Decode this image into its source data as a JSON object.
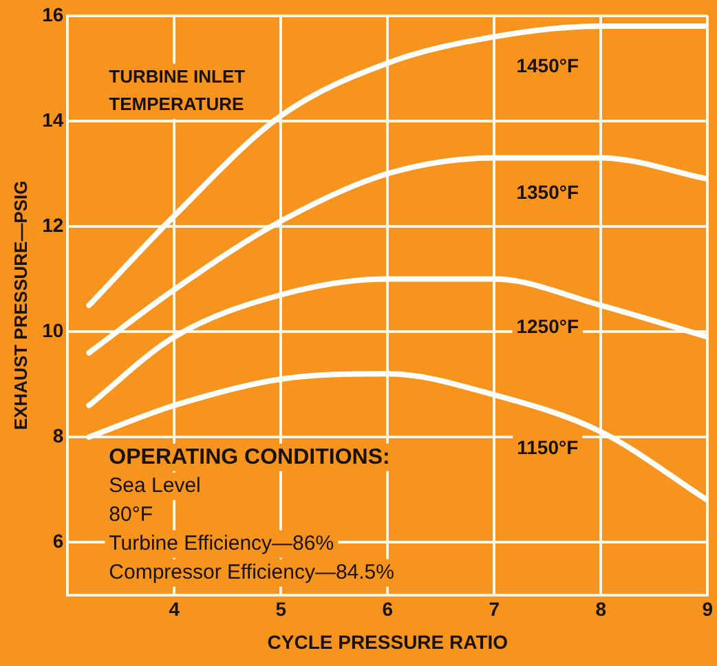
{
  "chart_data": {
    "type": "line",
    "xlabel": "CYCLE PRESSURE RATIO",
    "ylabel": "EXHAUST PRESSURE—PSIG",
    "legend_title": "TURBINE INLET TEMPERATURE",
    "x": [
      3.2,
      4,
      5,
      6,
      7,
      8,
      9
    ],
    "series": [
      {
        "name": "1450°F",
        "color": "#ffffff",
        "values": [
          10.5,
          12.2,
          14.1,
          15.1,
          15.6,
          15.8,
          15.8
        ]
      },
      {
        "name": "1350°F",
        "color": "#ffffff",
        "values": [
          9.6,
          10.8,
          12.1,
          13.0,
          13.3,
          13.3,
          12.9
        ]
      },
      {
        "name": "1250°F",
        "color": "#ffffff",
        "values": [
          8.6,
          9.9,
          10.7,
          11.0,
          11.0,
          10.5,
          9.9
        ]
      },
      {
        "name": "1150°F",
        "color": "#ffffff",
        "values": [
          8.0,
          8.6,
          9.1,
          9.2,
          8.8,
          8.1,
          6.8
        ]
      }
    ],
    "xlim": [
      3,
      9
    ],
    "xticks": [
      4,
      5,
      6,
      7,
      8,
      9
    ],
    "ylim": [
      5,
      16
    ],
    "yticks": [
      6,
      8,
      10,
      12,
      14,
      16
    ],
    "grid": true,
    "marker": "none",
    "line_style": "solid",
    "annotations": [
      "OPERATING CONDITIONS:",
      "Sea Level",
      "80°F",
      "Turbine Efficiency—86%",
      "Compressor Efficiency—84.5%"
    ]
  }
}
